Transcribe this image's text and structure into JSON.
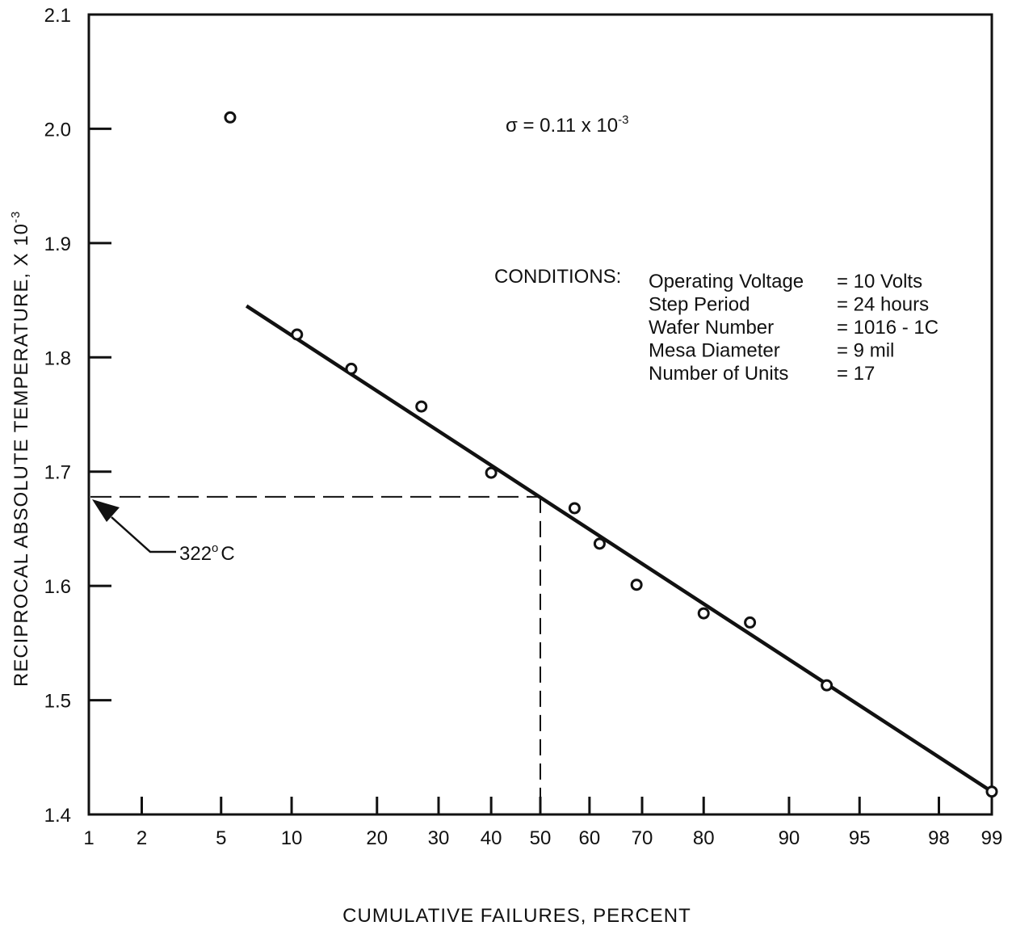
{
  "chart_data": {
    "type": "scatter",
    "title": "",
    "xlabel": "CUMULATIVE FAILURES, PERCENT",
    "ylabel": "RECIPROCAL ABSOLUTE TEMPERATURE, X 10",
    "ylabel_exponent": "-3",
    "x_scale": "normal-probability",
    "xlim": [
      1,
      99
    ],
    "ylim": [
      1.4,
      2.1
    ],
    "x_ticks": [
      1,
      2,
      5,
      10,
      20,
      30,
      40,
      50,
      60,
      70,
      80,
      90,
      95,
      98,
      99
    ],
    "y_ticks": [
      1.4,
      1.5,
      1.6,
      1.7,
      1.8,
      1.9,
      2.0,
      2.1
    ],
    "y_tick_labels": [
      "1.4",
      "1.5",
      "1.6",
      "1.7",
      "1.8",
      "1.9",
      "2.0",
      "2.1"
    ],
    "grid": false,
    "series": [
      {
        "type": "scatter",
        "marker": "open-circle",
        "points": [
          {
            "x": 5.5,
            "y": 2.01
          },
          {
            "x": 10.5,
            "y": 1.82
          },
          {
            "x": 16.5,
            "y": 1.79
          },
          {
            "x": 27,
            "y": 1.757
          },
          {
            "x": 40,
            "y": 1.699
          },
          {
            "x": 57,
            "y": 1.668
          },
          {
            "x": 62,
            "y": 1.637
          },
          {
            "x": 69,
            "y": 1.601
          },
          {
            "x": 80,
            "y": 1.576
          },
          {
            "x": 86,
            "y": 1.568
          },
          {
            "x": 93,
            "y": 1.513
          },
          {
            "x": 99,
            "y": 1.42
          }
        ]
      },
      {
        "type": "line",
        "fit": true,
        "points": [
          {
            "x": 6.5,
            "y": 1.845
          },
          {
            "x": 99,
            "y": 1.42
          }
        ]
      }
    ],
    "reference_lines": {
      "y_value": 1.678,
      "x_value": 50
    },
    "annotations": {
      "sigma_prefix": "σ = 0.11 x 10",
      "sigma_exponent": "-3",
      "temperature_label": "322",
      "temperature_degree": "o",
      "temperature_unit": "C",
      "conditions_heading": "CONDITIONS:",
      "conditions": [
        {
          "name": "Operating Voltage",
          "value": "= 10 Volts"
        },
        {
          "name": "Step Period",
          "value": "= 24 hours"
        },
        {
          "name": "Wafer Number",
          "value": "= 1016 - 1C"
        },
        {
          "name": "Mesa Diameter",
          "value": "= 9 mil"
        },
        {
          "name": "Number of Units",
          "value": "= 17"
        }
      ]
    }
  }
}
